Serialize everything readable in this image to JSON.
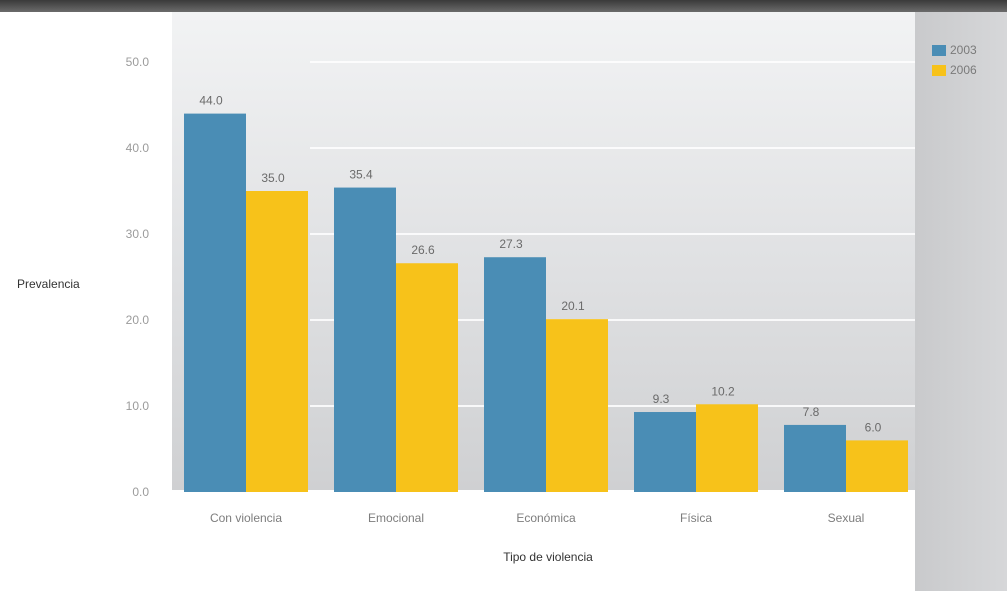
{
  "chart_data": {
    "type": "bar",
    "title": "",
    "xlabel": "Tipo de violencia",
    "ylabel": "Prevalencia",
    "categories": [
      "Con violencia",
      "Emocional",
      "Económica",
      "Física",
      "Sexual"
    ],
    "series": [
      {
        "name": "2003",
        "color": "#4a8db5",
        "values": [
          44.0,
          35.4,
          27.3,
          9.3,
          7.8
        ]
      },
      {
        "name": "2006",
        "color": "#f7c21a",
        "values": [
          35.0,
          26.6,
          20.1,
          10.2,
          6.0
        ]
      }
    ],
    "yticks": [
      "0.0",
      "10.0",
      "20.0",
      "30.0",
      "40.0",
      "50.0"
    ],
    "ylim": [
      0,
      50
    ],
    "grid": true,
    "legend": "top-right"
  }
}
